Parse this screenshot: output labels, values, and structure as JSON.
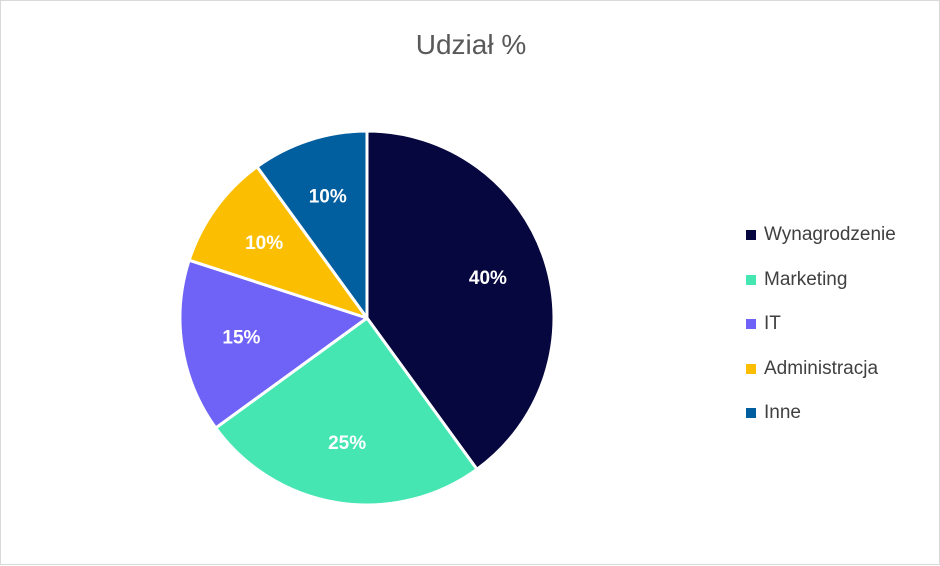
{
  "chart_data": {
    "type": "pie",
    "title": "Udział %",
    "categories": [
      "Wynagrodzenie",
      "Marketing",
      "IT",
      "Administracja",
      "Inne"
    ],
    "values": [
      40,
      25,
      15,
      10,
      10
    ],
    "value_labels": [
      "40%",
      "25%",
      "15%",
      "10%",
      "10%"
    ],
    "colors": [
      "#07073f",
      "#46e6b3",
      "#6f63f7",
      "#fbbe00",
      "#025f9f"
    ],
    "legend_position": "right",
    "start": "top",
    "direction": "clockwise"
  }
}
